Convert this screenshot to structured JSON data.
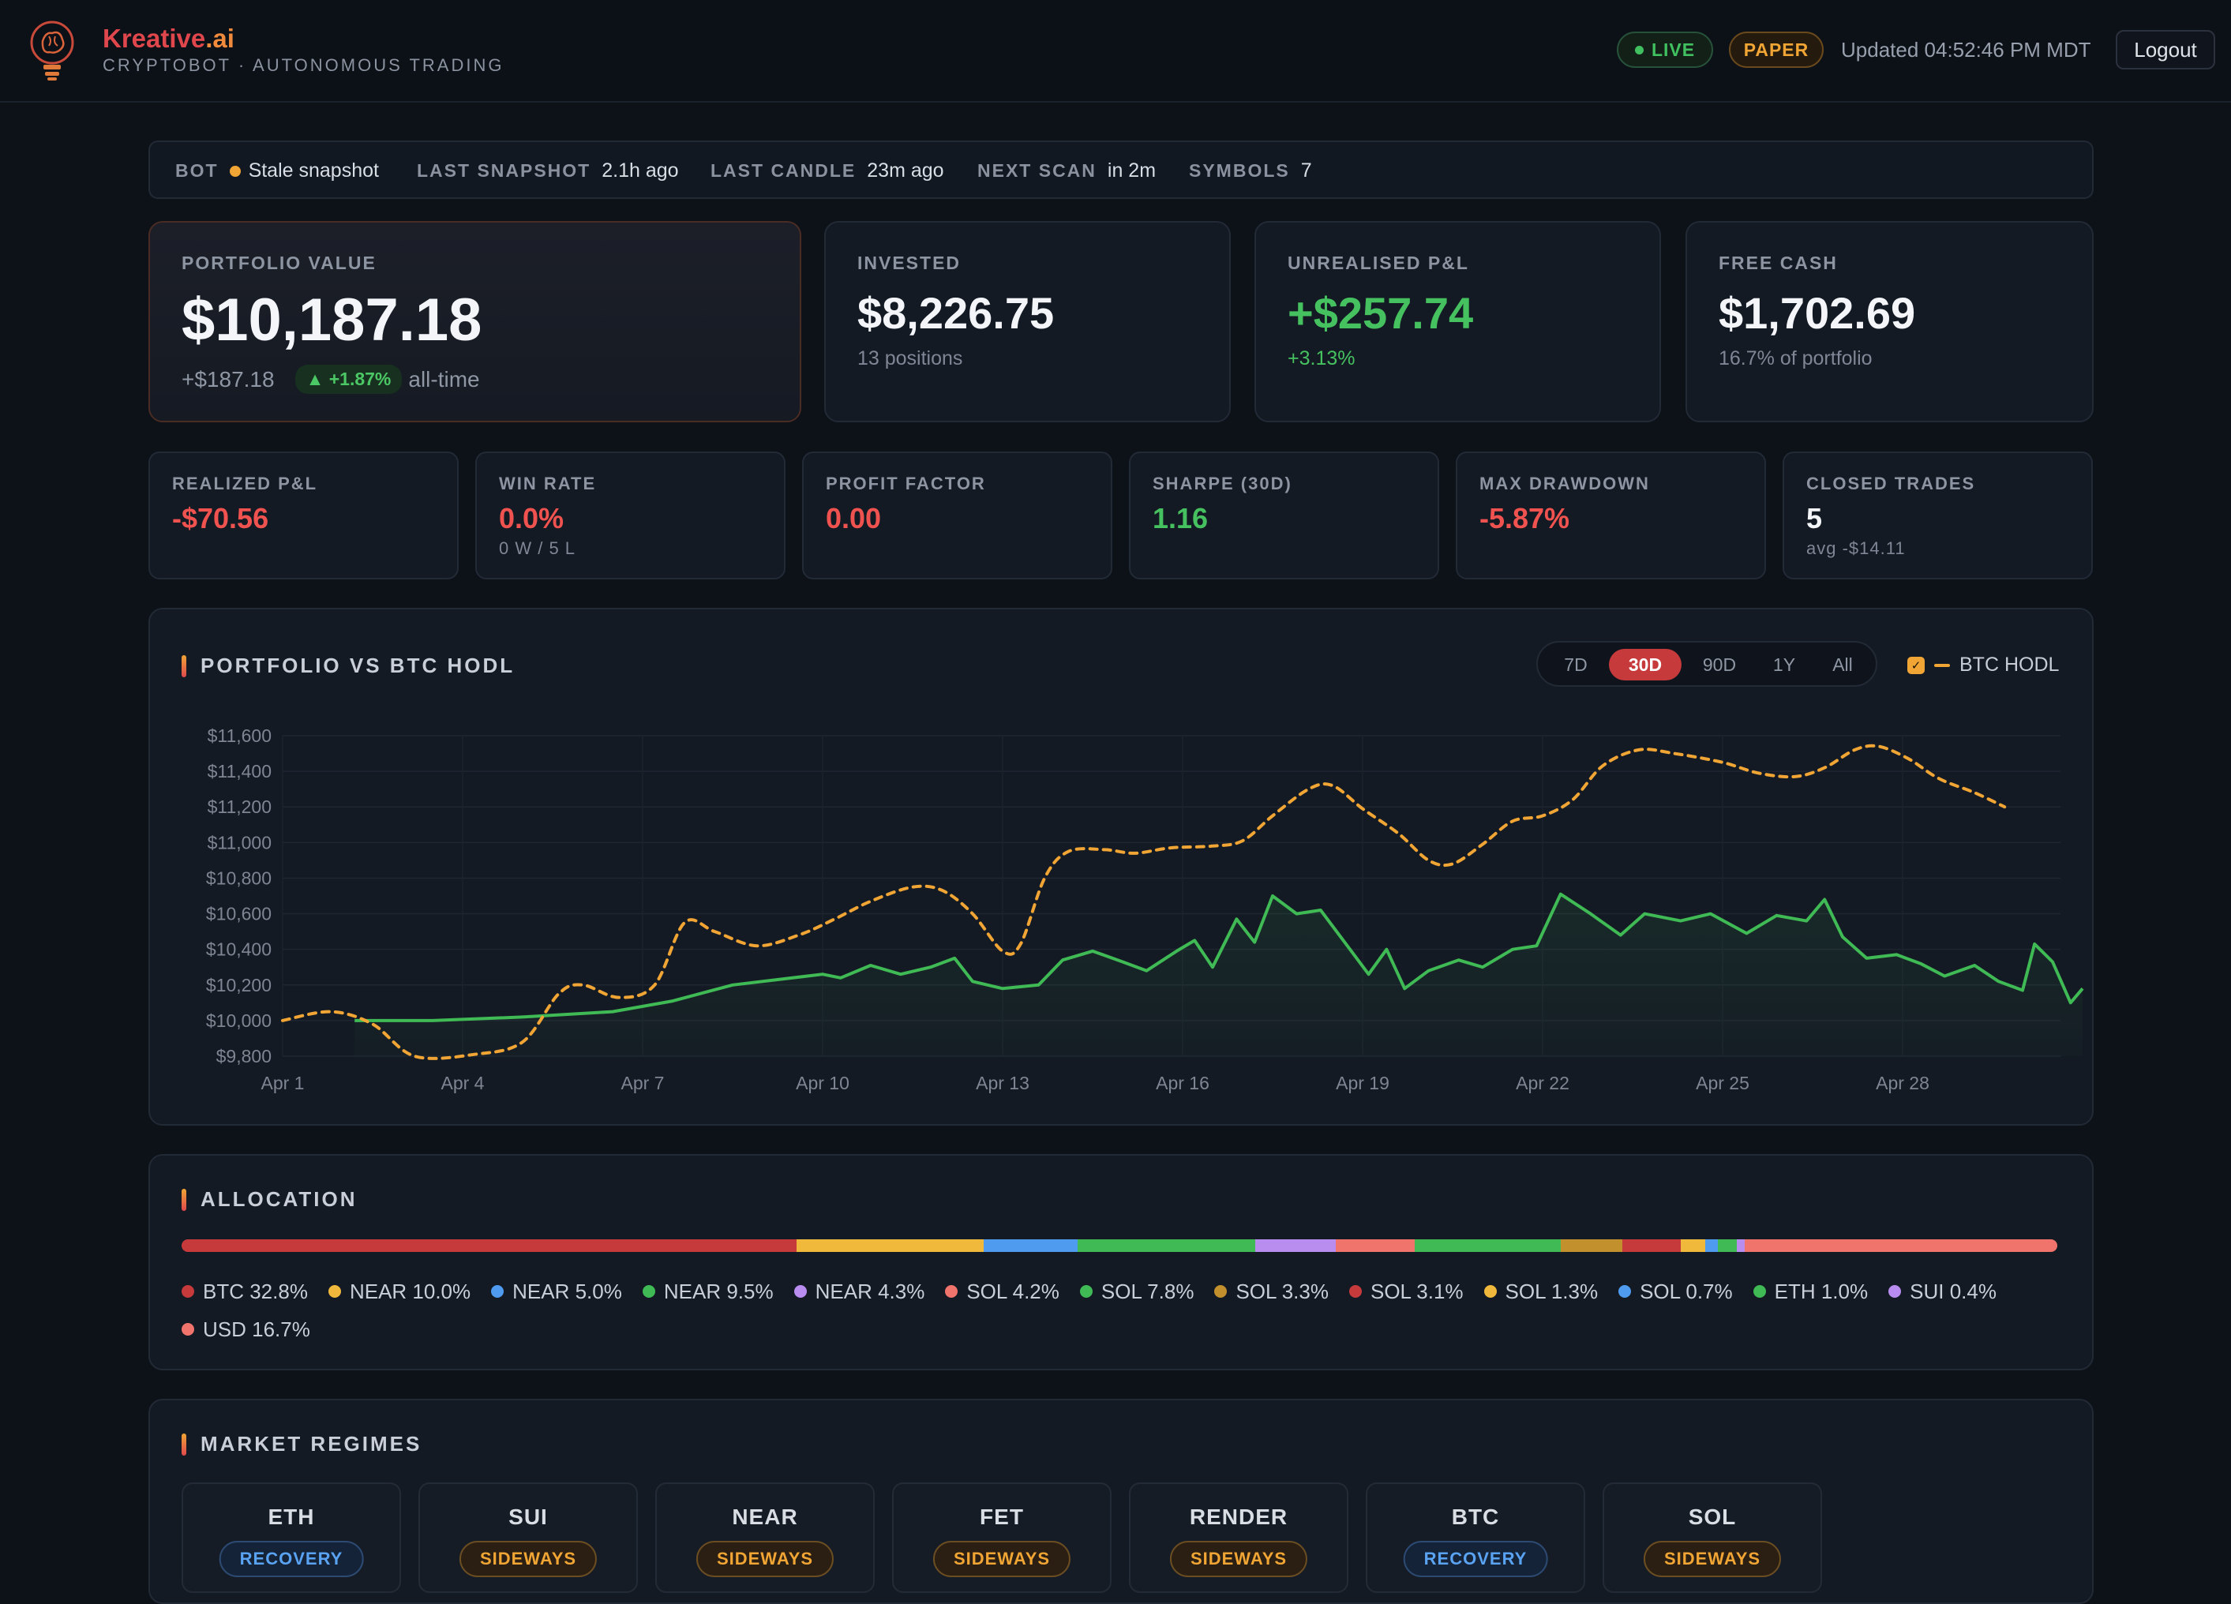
{
  "header": {
    "brand_main": "Kreative",
    "brand_suffix": ".ai",
    "tagline": "CRYPTOBOT · AUTONOMOUS TRADING",
    "live_label": "LIVE",
    "paper_label": "PAPER",
    "updated": "Updated 04:52:46 PM MDT",
    "logout_label": "Logout"
  },
  "status": {
    "bot_label": "BOT",
    "bot_value": "Stale snapshot",
    "last_snapshot_label": "LAST SNAPSHOT",
    "last_snapshot_value": "2.1h ago",
    "last_candle_label": "LAST CANDLE",
    "last_candle_value": "23m ago",
    "next_scan_label": "NEXT SCAN",
    "next_scan_value": "in 2m",
    "symbols_label": "SYMBOLS",
    "symbols_value": "7"
  },
  "kpis": {
    "portfolio": {
      "label": "PORTFOLIO VALUE",
      "value": "$10,187.18",
      "change": "+$187.18",
      "pct": "▲ +1.87%",
      "period": "all-time"
    },
    "invested": {
      "label": "INVESTED",
      "value": "$8,226.75",
      "sub": "13 positions"
    },
    "unrealised": {
      "label": "UNREALISED P&L",
      "value": "+$257.74",
      "sub": "+3.13%"
    },
    "free_cash": {
      "label": "FREE CASH",
      "value": "$1,702.69",
      "sub": "16.7% of portfolio"
    }
  },
  "metrics": [
    {
      "label": "REALIZED P&L",
      "value": "-$70.56",
      "sub": "",
      "tone": "red"
    },
    {
      "label": "WIN RATE",
      "value": "0.0%",
      "sub": "0 W / 5 L",
      "tone": "red"
    },
    {
      "label": "PROFIT FACTOR",
      "value": "0.00",
      "sub": "",
      "tone": "red"
    },
    {
      "label": "SHARPE (30D)",
      "value": "1.16",
      "sub": "",
      "tone": "green"
    },
    {
      "label": "MAX DRAWDOWN",
      "value": "-5.87%",
      "sub": "",
      "tone": "red"
    },
    {
      "label": "CLOSED TRADES",
      "value": "5",
      "sub": "avg -$14.11",
      "tone": "white"
    }
  ],
  "chart_section": {
    "title": "PORTFOLIO VS BTC HODL",
    "ranges": [
      "7D",
      "30D",
      "90D",
      "1Y",
      "All"
    ],
    "active_range": "30D",
    "legend_label": "BTC HODL"
  },
  "chart_data": {
    "type": "line",
    "ylim": [
      9800,
      11600
    ],
    "yticks": [
      "$11,600",
      "$11,400",
      "$11,200",
      "$11,000",
      "$10,800",
      "$10,600",
      "$10,400",
      "$10,200",
      "$10,000",
      "$9,800"
    ],
    "yvals": [
      11600,
      11400,
      11200,
      11000,
      10800,
      10600,
      10400,
      10200,
      10000,
      9800
    ],
    "xlim": [
      1,
      30.5
    ],
    "xticks": [
      {
        "day": 1,
        "label": "Apr 1"
      },
      {
        "day": 4,
        "label": "Apr 4"
      },
      {
        "day": 7,
        "label": "Apr 7"
      },
      {
        "day": 10,
        "label": "Apr 10"
      },
      {
        "day": 13,
        "label": "Apr 13"
      },
      {
        "day": 16,
        "label": "Apr 16"
      },
      {
        "day": 19,
        "label": "Apr 19"
      },
      {
        "day": 22,
        "label": "Apr 22"
      },
      {
        "day": 25,
        "label": "Apr 25"
      },
      {
        "day": 28,
        "label": "Apr 28"
      }
    ],
    "series": [
      {
        "name": "Portfolio",
        "color": "#3fba55",
        "points": [
          [
            2.2,
            10000
          ],
          [
            3.5,
            10000
          ],
          [
            5,
            10020
          ],
          [
            6.5,
            10050
          ],
          [
            7.5,
            10110
          ],
          [
            8.5,
            10200
          ],
          [
            10,
            10260
          ],
          [
            10.3,
            10240
          ],
          [
            10.8,
            10310
          ],
          [
            11.3,
            10260
          ],
          [
            11.8,
            10300
          ],
          [
            12.2,
            10350
          ],
          [
            12.5,
            10220
          ],
          [
            13,
            10180
          ],
          [
            13.6,
            10200
          ],
          [
            14,
            10340
          ],
          [
            14.5,
            10390
          ],
          [
            15,
            10330
          ],
          [
            15.4,
            10280
          ],
          [
            15.9,
            10390
          ],
          [
            16.2,
            10450
          ],
          [
            16.5,
            10300
          ],
          [
            16.9,
            10570
          ],
          [
            17.2,
            10440
          ],
          [
            17.5,
            10700
          ],
          [
            17.9,
            10600
          ],
          [
            18.3,
            10620
          ],
          [
            18.7,
            10440
          ],
          [
            19.1,
            10260
          ],
          [
            19.4,
            10400
          ],
          [
            19.7,
            10180
          ],
          [
            20.1,
            10280
          ],
          [
            20.6,
            10340
          ],
          [
            21,
            10300
          ],
          [
            21.5,
            10400
          ],
          [
            21.9,
            10420
          ],
          [
            22.3,
            10710
          ],
          [
            22.8,
            10600
          ],
          [
            23.3,
            10480
          ],
          [
            23.7,
            10600
          ],
          [
            24.3,
            10560
          ],
          [
            24.8,
            10600
          ],
          [
            25.4,
            10490
          ],
          [
            25.9,
            10590
          ],
          [
            26.4,
            10560
          ],
          [
            26.7,
            10680
          ],
          [
            27,
            10470
          ],
          [
            27.4,
            10350
          ],
          [
            27.9,
            10370
          ],
          [
            28.3,
            10320
          ],
          [
            28.7,
            10250
          ],
          [
            29.2,
            10310
          ],
          [
            29.6,
            10220
          ],
          [
            30,
            10170
          ],
          [
            30.2,
            10430
          ],
          [
            30.5,
            10330
          ],
          [
            30.8,
            10100
          ],
          [
            31,
            10180
          ]
        ]
      },
      {
        "name": "BTC HODL",
        "color": "#f0a534",
        "dashed": true,
        "points": [
          [
            1,
            10000
          ],
          [
            1.8,
            10050
          ],
          [
            2.5,
            9980
          ],
          [
            3.2,
            9800
          ],
          [
            4.2,
            9810
          ],
          [
            5,
            9880
          ],
          [
            5.6,
            10150
          ],
          [
            6,
            10200
          ],
          [
            6.6,
            10130
          ],
          [
            7.2,
            10200
          ],
          [
            7.7,
            10550
          ],
          [
            8.2,
            10500
          ],
          [
            8.9,
            10420
          ],
          [
            9.6,
            10480
          ],
          [
            10.2,
            10570
          ],
          [
            10.8,
            10670
          ],
          [
            11.5,
            10750
          ],
          [
            12,
            10730
          ],
          [
            12.5,
            10600
          ],
          [
            13,
            10390
          ],
          [
            13.3,
            10430
          ],
          [
            13.7,
            10800
          ],
          [
            14.1,
            10950
          ],
          [
            14.7,
            10960
          ],
          [
            15.2,
            10940
          ],
          [
            15.8,
            10970
          ],
          [
            16.5,
            10980
          ],
          [
            17,
            11010
          ],
          [
            17.5,
            11150
          ],
          [
            18.1,
            11300
          ],
          [
            18.5,
            11320
          ],
          [
            19,
            11190
          ],
          [
            19.6,
            11050
          ],
          [
            20.1,
            10900
          ],
          [
            20.5,
            10880
          ],
          [
            21,
            10990
          ],
          [
            21.5,
            11120
          ],
          [
            22,
            11150
          ],
          [
            22.5,
            11240
          ],
          [
            23,
            11430
          ],
          [
            23.6,
            11520
          ],
          [
            24.2,
            11500
          ],
          [
            25,
            11450
          ],
          [
            25.6,
            11390
          ],
          [
            26.2,
            11370
          ],
          [
            26.7,
            11420
          ],
          [
            27.2,
            11520
          ],
          [
            27.6,
            11540
          ],
          [
            28.1,
            11470
          ],
          [
            28.6,
            11360
          ],
          [
            29.2,
            11280
          ],
          [
            29.7,
            11200
          ]
        ]
      }
    ]
  },
  "allocation": {
    "title": "ALLOCATION",
    "items": [
      {
        "label": "BTC 32.8%",
        "pct": 32.8,
        "color": "#c73a3c"
      },
      {
        "label": "NEAR 10.0%",
        "pct": 10.0,
        "color": "#f0b93c"
      },
      {
        "label": "NEAR 5.0%",
        "pct": 5.0,
        "color": "#4f9bf0"
      },
      {
        "label": "NEAR 9.5%",
        "pct": 9.5,
        "color": "#3fba55"
      },
      {
        "label": "NEAR 4.3%",
        "pct": 4.3,
        "color": "#b98df0"
      },
      {
        "label": "SOL 4.2%",
        "pct": 4.2,
        "color": "#f0736c"
      },
      {
        "label": "SOL 7.8%",
        "pct": 7.8,
        "color": "#3fba55"
      },
      {
        "label": "SOL 3.3%",
        "pct": 3.3,
        "color": "#c2902c"
      },
      {
        "label": "SOL 3.1%",
        "pct": 3.1,
        "color": "#c73a3c"
      },
      {
        "label": "SOL 1.3%",
        "pct": 1.3,
        "color": "#f0b93c"
      },
      {
        "label": "SOL 0.7%",
        "pct": 0.7,
        "color": "#4f9bf0"
      },
      {
        "label": "ETH 1.0%",
        "pct": 1.0,
        "color": "#3fba55"
      },
      {
        "label": "SUI 0.4%",
        "pct": 0.4,
        "color": "#b98df0"
      },
      {
        "label": "USD 16.7%",
        "pct": 16.7,
        "color": "#f0736c"
      }
    ]
  },
  "regimes": {
    "title": "MARKET REGIMES",
    "items": [
      {
        "symbol": "ETH",
        "regime": "RECOVERY"
      },
      {
        "symbol": "SUI",
        "regime": "SIDEWAYS"
      },
      {
        "symbol": "NEAR",
        "regime": "SIDEWAYS"
      },
      {
        "symbol": "FET",
        "regime": "SIDEWAYS"
      },
      {
        "symbol": "RENDER",
        "regime": "SIDEWAYS"
      },
      {
        "symbol": "BTC",
        "regime": "RECOVERY"
      },
      {
        "symbol": "SOL",
        "regime": "SIDEWAYS"
      }
    ]
  }
}
